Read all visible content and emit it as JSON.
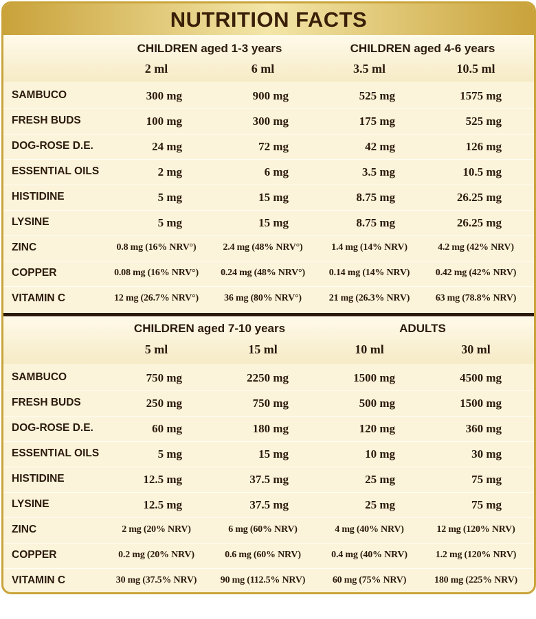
{
  "title": "NUTRITION FACTS",
  "sections": [
    {
      "groups": [
        "CHILDREN aged 1-3 years",
        "CHILDREN aged 4-6 years"
      ],
      "doses": [
        "2 ml",
        "6 ml",
        "3.5 ml",
        "10.5 ml"
      ],
      "rows": [
        {
          "label": "SAMBUCO",
          "values": [
            "300 mg",
            "900 mg",
            "525 mg",
            "1575 mg"
          ]
        },
        {
          "label": "FRESH BUDS",
          "values": [
            "100 mg",
            "300 mg",
            "175 mg",
            "525 mg"
          ]
        },
        {
          "label": "DOG-ROSE D.E.",
          "values": [
            "24 mg",
            "72 mg",
            "42 mg",
            "126 mg"
          ]
        },
        {
          "label": "ESSENTIAL OILS",
          "values": [
            "2 mg",
            "6 mg",
            "3.5 mg",
            "10.5 mg"
          ]
        },
        {
          "label": "HISTIDINE",
          "values": [
            "5 mg",
            "15 mg",
            "8.75 mg",
            "26.25 mg"
          ]
        },
        {
          "label": "LYSINE",
          "values": [
            "5 mg",
            "15 mg",
            "8.75 mg",
            "26.25 mg"
          ]
        },
        {
          "label": "ZINC",
          "values": [
            "0.8 mg (16% NRV°)",
            "2.4 mg (48% NRV°)",
            "1.4 mg (14% NRV)",
            "4.2 mg (42% NRV)"
          ]
        },
        {
          "label": "COPPER",
          "values": [
            "0.08 mg (16% NRV°)",
            "0.24 mg (48% NRV°)",
            "0.14 mg (14% NRV)",
            "0.42 mg (42% NRV)"
          ]
        },
        {
          "label": "VITAMIN C",
          "values": [
            "12 mg (26.7% NRV°)",
            "36 mg (80% NRV°)",
            "21 mg (26.3% NRV)",
            "63 mg (78.8% NRV)"
          ]
        }
      ]
    },
    {
      "groups": [
        "CHILDREN aged 7-10 years",
        "ADULTS"
      ],
      "doses": [
        "5 ml",
        "15 ml",
        "10 ml",
        "30 ml"
      ],
      "rows": [
        {
          "label": "SAMBUCO",
          "values": [
            "750 mg",
            "2250 mg",
            "1500 mg",
            "4500 mg"
          ]
        },
        {
          "label": "FRESH BUDS",
          "values": [
            "250 mg",
            "750 mg",
            "500 mg",
            "1500 mg"
          ]
        },
        {
          "label": "DOG-ROSE D.E.",
          "values": [
            "60 mg",
            "180 mg",
            "120 mg",
            "360 mg"
          ]
        },
        {
          "label": "ESSENTIAL OILS",
          "values": [
            "5 mg",
            "15 mg",
            "10 mg",
            "30 mg"
          ]
        },
        {
          "label": "HISTIDINE",
          "values": [
            "12.5 mg",
            "37.5 mg",
            "25 mg",
            "75 mg"
          ]
        },
        {
          "label": "LYSINE",
          "values": [
            "12.5 mg",
            "37.5 mg",
            "25 mg",
            "75 mg"
          ]
        },
        {
          "label": "ZINC",
          "values": [
            "2 mg (20% NRV)",
            "6 mg (60% NRV)",
            "4 mg (40% NRV)",
            "12 mg (120% NRV)"
          ]
        },
        {
          "label": "COPPER",
          "values": [
            "0.2 mg (20% NRV)",
            "0.6 mg (60% NRV)",
            "0.4 mg (40% NRV)",
            "1.2 mg (120% NRV)"
          ]
        },
        {
          "label": "VITAMIN C",
          "values": [
            "30 mg (37.5% NRV)",
            "90 mg (112.5% NRV)",
            "60 mg (75% NRV)",
            "180 mg (225% NRV)"
          ]
        }
      ]
    }
  ]
}
